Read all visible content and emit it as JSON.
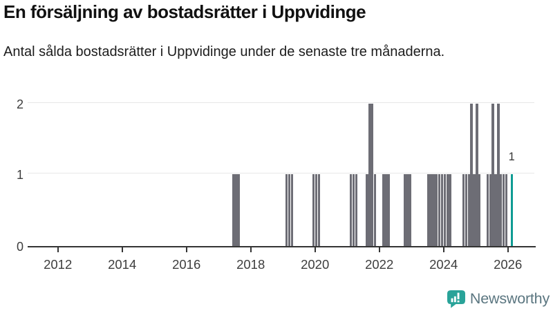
{
  "title": "En försäljning av bostadsrätter i Uppvidinge",
  "subtitle": "Antal sålda bostadsrätter i Uppvidinge under de senaste tre månaderna.",
  "branding": {
    "logo_text": "Newsworthy",
    "logo_icon": "bar-chart-speech-bubble-icon"
  },
  "colors": {
    "bar": "#6d6d75",
    "highlight_bar": "#0f9b93",
    "gridline": "#e7e7e7",
    "axis_line": "#333333",
    "axis_text": "#3d3d3d",
    "logo_teal": "#29a399",
    "logo_text": "#5b7680"
  },
  "chart_data": {
    "type": "bar",
    "title": "En försäljning av bostadsrätter i Uppvidinge",
    "subtitle": "Antal sålda bostadsrätter i Uppvidinge under de senaste tre månaderna.",
    "x_axis": {
      "tick_labels": [
        "2012",
        "2014",
        "2016",
        "2018",
        "2020",
        "2022",
        "2024",
        "2026"
      ],
      "range_start_year": 2011,
      "range_end_year": 2027,
      "resolution": "monthly"
    },
    "y_axis": {
      "tick_labels": [
        "0",
        "1",
        "2"
      ],
      "min": 0,
      "max": 2
    },
    "grid": true,
    "note_bars_not_listed": 0,
    "bars": [
      {
        "month": "2017-06",
        "value": 1
      },
      {
        "month": "2017-07",
        "value": 1
      },
      {
        "month": "2017-08",
        "value": 1
      },
      {
        "month": "2019-02",
        "value": 1
      },
      {
        "month": "2019-03",
        "value": 1
      },
      {
        "month": "2019-04",
        "value": 1
      },
      {
        "month": "2019-12",
        "value": 1
      },
      {
        "month": "2020-01",
        "value": 1
      },
      {
        "month": "2020-02",
        "value": 1
      },
      {
        "month": "2021-02",
        "value": 1
      },
      {
        "month": "2021-03",
        "value": 1
      },
      {
        "month": "2021-04",
        "value": 1
      },
      {
        "month": "2021-08",
        "value": 1
      },
      {
        "month": "2021-09",
        "value": 2
      },
      {
        "month": "2021-10",
        "value": 2
      },
      {
        "month": "2021-11",
        "value": 1
      },
      {
        "month": "2022-02",
        "value": 1
      },
      {
        "month": "2022-03",
        "value": 1
      },
      {
        "month": "2022-04",
        "value": 1
      },
      {
        "month": "2022-10",
        "value": 1
      },
      {
        "month": "2022-11",
        "value": 1
      },
      {
        "month": "2022-12",
        "value": 1
      },
      {
        "month": "2023-07",
        "value": 1
      },
      {
        "month": "2023-08",
        "value": 1
      },
      {
        "month": "2023-09",
        "value": 1
      },
      {
        "month": "2023-10",
        "value": 1
      },
      {
        "month": "2023-11",
        "value": 1
      },
      {
        "month": "2023-12",
        "value": 1
      },
      {
        "month": "2024-01",
        "value": 1
      },
      {
        "month": "2024-02",
        "value": 1
      },
      {
        "month": "2024-03",
        "value": 1
      },
      {
        "month": "2024-08",
        "value": 1
      },
      {
        "month": "2024-09",
        "value": 1
      },
      {
        "month": "2024-10",
        "value": 1
      },
      {
        "month": "2024-11",
        "value": 2
      },
      {
        "month": "2024-12",
        "value": 1
      },
      {
        "month": "2025-01",
        "value": 2
      },
      {
        "month": "2025-02",
        "value": 1
      },
      {
        "month": "2025-05",
        "value": 1
      },
      {
        "month": "2025-06",
        "value": 1
      },
      {
        "month": "2025-07",
        "value": 2
      },
      {
        "month": "2025-08",
        "value": 1
      },
      {
        "month": "2025-09",
        "value": 2
      },
      {
        "month": "2025-10",
        "value": 1
      },
      {
        "month": "2025-11",
        "value": 1
      },
      {
        "month": "2025-12",
        "value": 1
      },
      {
        "month": "2026-02",
        "value": 1,
        "highlight": true,
        "label": "1"
      }
    ]
  }
}
